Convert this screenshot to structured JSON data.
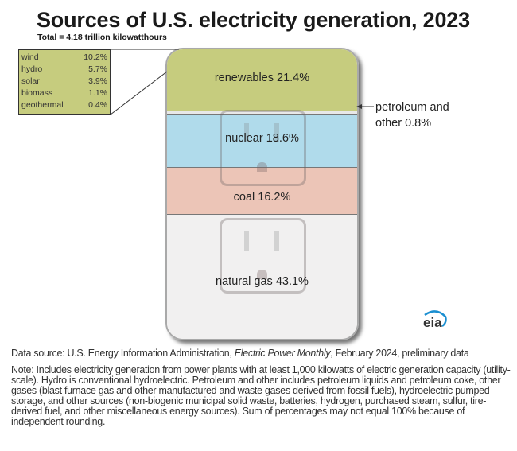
{
  "title": "Sources of U.S. electricity generation, 2023",
  "subtitle": "Total = 4.18 trillion kilowatthours",
  "chart_data": {
    "type": "bar",
    "stacked": true,
    "title": "Sources of U.S. electricity generation, 2023",
    "subtitle": "Total = 4.18 trillion kilowatthours",
    "unit": "%",
    "categories": [
      "renewables",
      "petroleum and other",
      "nuclear",
      "coal",
      "natural gas"
    ],
    "values": [
      21.4,
      0.8,
      18.6,
      16.2,
      43.1
    ],
    "labels": [
      "renewables 21.4%",
      "petroleum and other 0.8%",
      "nuclear 18.6%",
      "coal 16.2%",
      "natural gas 43.1%"
    ],
    "colors": [
      "#c6cc7e",
      "#e8e8e8",
      "#b0dbeb",
      "#ecc5b7",
      "#f1f0f0"
    ],
    "renewables_breakdown": [
      {
        "name": "wind",
        "value": "10.2%"
      },
      {
        "name": "hydro",
        "value": "5.7%"
      },
      {
        "name": "solar",
        "value": "3.9%"
      },
      {
        "name": "biomass",
        "value": "1.1%"
      },
      {
        "name": "geothermal",
        "value": "0.4%"
      }
    ]
  },
  "petroleum_label": {
    "line1": "petroleum and",
    "line2": "other  0.8%"
  },
  "logo": "eia",
  "source": {
    "prefix": "Data source: U.S. Energy Information Administration, ",
    "publication": "Electric Power Monthly",
    "suffix": ", February 2024, preliminary data"
  },
  "note": "Note: Includes electricity generation from power plants with at least 1,000 kilowatts of electric generation capacity (utility-scale). Hydro is conventional hydroelectric. Petroleum and other includes petroleum liquids and petroleum coke, other gases (blast furnace gas and other manufactured and waste gases derived from fossil fuels), hydroelectric pumped storage, and other sources (non-biogenic municipal solid waste, batteries, hydrogen, purchased steam, sulfur, tire-derived fuel, and other miscellaneous energy sources). Sum of percentages may not equal 100% because of independent rounding."
}
